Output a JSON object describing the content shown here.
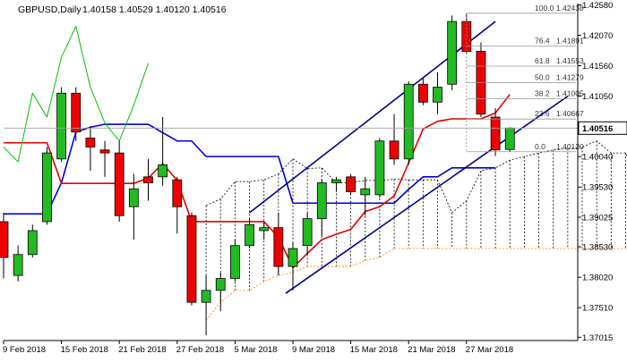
{
  "header": {
    "symbol": "GBPUSD,Daily",
    "ohlc": "1.40158 1.40529 1.40120 1.40516"
  },
  "chart_data": {
    "type": "candlestick",
    "symbol": "GBPUSD",
    "timeframe": "Daily",
    "ylim": [
      1.3696,
      1.426
    ],
    "y_ticks": [
      {
        "value": 1.4258,
        "label": "1.42580"
      },
      {
        "value": 1.4207,
        "label": "1.42070"
      },
      {
        "value": 1.4156,
        "label": "1.41560"
      },
      {
        "value": 1.4105,
        "label": "1.41050"
      },
      {
        "value": 1.4054,
        "label": "1.40540"
      },
      {
        "value": 1.4004,
        "label": "1.40040"
      },
      {
        "value": 1.3953,
        "label": "1.39530"
      },
      {
        "value": 1.39025,
        "label": "1.39025"
      },
      {
        "value": 1.3853,
        "label": "1.38530"
      },
      {
        "value": 1.3802,
        "label": "1.38020"
      },
      {
        "value": 1.3751,
        "label": "1.37510"
      },
      {
        "value": 1.37015,
        "label": "1.37015"
      }
    ],
    "x_ticks": [
      {
        "index": 0,
        "label": "9 Feb 2018"
      },
      {
        "index": 4,
        "label": "15 Feb 2018"
      },
      {
        "index": 8,
        "label": "21 Feb 2018"
      },
      {
        "index": 12,
        "label": "27 Feb 2018"
      },
      {
        "index": 16,
        "label": "5 Mar 2018"
      },
      {
        "index": 20,
        "label": "9 Mar 2018"
      },
      {
        "index": 24,
        "label": "15 Mar 2018"
      },
      {
        "index": 28,
        "label": "21 Mar 2018"
      },
      {
        "index": 32,
        "label": "27 Mar 2018"
      }
    ],
    "candles": [
      [
        1.3895,
        1.391,
        1.38,
        1.3835
      ],
      [
        1.3805,
        1.3855,
        1.3795,
        1.384
      ],
      [
        1.384,
        1.389,
        1.3835,
        1.388
      ],
      [
        1.3895,
        1.402,
        1.389,
        1.401
      ],
      [
        1.4,
        1.412,
        1.3995,
        1.411
      ],
      [
        1.411,
        1.412,
        1.403,
        1.4045
      ],
      [
        1.4035,
        1.4055,
        1.398,
        1.402
      ],
      [
        1.4015,
        1.403,
        1.397,
        1.401
      ],
      [
        1.401,
        1.403,
        1.3895,
        1.3905
      ],
      [
        1.392,
        1.3975,
        1.3865,
        1.395
      ],
      [
        1.397,
        1.4,
        1.393,
        1.396
      ],
      [
        1.397,
        1.407,
        1.3955,
        1.399
      ],
      [
        1.3965,
        1.397,
        1.3875,
        1.392
      ],
      [
        1.3905,
        1.391,
        1.3755,
        1.376
      ],
      [
        1.376,
        1.3805,
        1.3705,
        1.378
      ],
      [
        1.378,
        1.381,
        1.3745,
        1.38
      ],
      [
        1.38,
        1.3865,
        1.3795,
        1.3855
      ],
      [
        1.3855,
        1.39,
        1.385,
        1.389
      ],
      [
        1.388,
        1.3895,
        1.3865,
        1.3885
      ],
      [
        1.3885,
        1.391,
        1.3805,
        1.382
      ],
      [
        1.382,
        1.386,
        1.378,
        1.385
      ],
      [
        1.3855,
        1.391,
        1.384,
        1.39
      ],
      [
        1.39,
        1.3965,
        1.387,
        1.396
      ],
      [
        1.396,
        1.397,
        1.3945,
        1.3965
      ],
      [
        1.397,
        1.3975,
        1.394,
        1.3945
      ],
      [
        1.394,
        1.397,
        1.3905,
        1.395
      ],
      [
        1.394,
        1.4035,
        1.3935,
        1.403
      ],
      [
        1.403,
        1.4075,
        1.399,
        1.4
      ],
      [
        1.4,
        1.413,
        1.399,
        1.4125
      ],
      [
        1.4125,
        1.4135,
        1.409,
        1.4095
      ],
      [
        1.4095,
        1.4145,
        1.4075,
        1.412
      ],
      [
        1.4125,
        1.424,
        1.4115,
        1.423
      ],
      [
        1.423,
        1.42438,
        1.4175,
        1.418
      ],
      [
        1.418,
        1.4195,
        1.407,
        1.4075
      ],
      [
        1.407,
        1.4085,
        1.4005,
        1.4015
      ],
      [
        1.40158,
        1.40529,
        1.4012,
        1.40516
      ]
    ],
    "red_line": [
      1.4027,
      1.4027,
      1.4027,
      1.4027,
      1.3959,
      1.3959,
      1.3959,
      1.3959,
      1.3959,
      1.3959,
      1.3968,
      1.3992,
      1.3964,
      1.3895,
      1.3895,
      1.3895,
      1.3895,
      1.3895,
      1.3895,
      1.3869,
      1.3818,
      1.3842,
      1.3865,
      1.3874,
      1.3882,
      1.3912,
      1.392,
      1.3938,
      1.3993,
      1.405,
      1.4063,
      1.4067,
      1.4067,
      1.4067,
      1.4077,
      1.4108
    ],
    "blue_line": [
      1.3908,
      1.3908,
      1.3908,
      1.3908,
      1.396,
      1.4045,
      1.4053,
      1.4058,
      1.4058,
      1.4058,
      1.4058,
      1.4044,
      1.403,
      1.403,
      1.4004,
      1.4004,
      1.4004,
      1.4004,
      1.4004,
      1.4004,
      1.3926,
      1.3926,
      1.3926,
      1.3926,
      1.3926,
      1.3926,
      1.3926,
      1.3926,
      1.3949,
      1.397,
      1.397,
      1.3985,
      1.3985,
      1.3985,
      1.3985
    ],
    "green_line": [
      1.402,
      1.3995,
      1.411,
      1.407,
      1.417,
      1.4222,
      1.412,
      1.406,
      1.403,
      1.409,
      1.416
    ],
    "cloud_edge_a": [
      1.3922,
      1.3933,
      1.3962,
      1.3962,
      1.3965,
      1.3975,
      1.4,
      1.3984,
      1.3985,
      1.396,
      1.396,
      1.3964,
      1.3964,
      1.3966,
      1.3965,
      1.3965,
      1.3965,
      1.391,
      1.393,
      1.398,
      1.3985,
      1.3998,
      1.4004,
      1.401,
      1.4015,
      1.4017,
      1.402,
      1.403,
      1.401,
      1.401,
      1.396
    ],
    "cloud_edge_b": [
      1.373,
      1.376,
      1.378,
      1.378,
      1.3795,
      1.3805,
      1.381,
      1.382,
      1.382,
      1.382,
      1.382,
      1.383,
      1.3835,
      1.385,
      1.385,
      1.385,
      1.385,
      1.385,
      1.385,
      1.385,
      1.385,
      1.385,
      1.385,
      1.385,
      1.385,
      1.385,
      1.385,
      1.385,
      1.385,
      1.385,
      1.385
    ],
    "channel_upper": {
      "x": [
        17,
        34
      ],
      "y": [
        1.391,
        1.423
      ]
    },
    "channel_lower": {
      "x": [
        19.5,
        39
      ],
      "y": [
        1.3775,
        1.4105
      ]
    },
    "fibonacci": [
      {
        "label": "100.0",
        "value": 1.42438
      },
      {
        "label": "76.4",
        "value": 1.41891
      },
      {
        "label": "61.8",
        "value": 1.41553
      },
      {
        "label": "50.0",
        "value": 1.41279
      },
      {
        "label": "38.2",
        "value": 1.41005
      },
      {
        "label": "23.6",
        "value": 1.40667
      },
      {
        "label": "0.0",
        "value": 1.4012
      }
    ],
    "current_price": {
      "value": 1.40516,
      "label": "1.40516"
    }
  }
}
